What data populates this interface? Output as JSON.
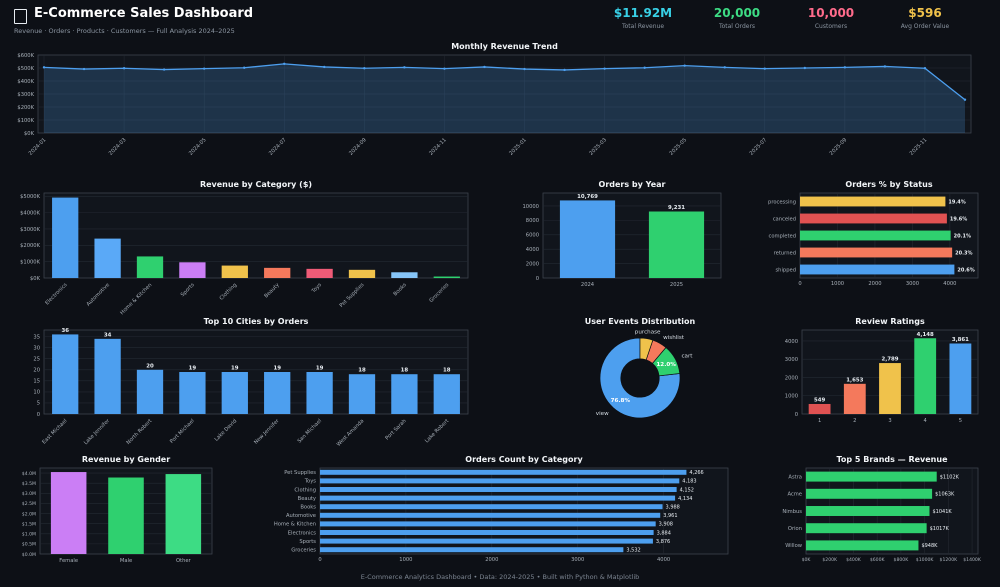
{
  "header": {
    "title": "E-Commerce Sales Dashboard",
    "subtitle": "Revenue · Orders · Products · Customers — Full Analysis 2024–2025",
    "kpis": [
      {
        "value": "$11.92M",
        "label": "Total Revenue",
        "color": "#38d0e6"
      },
      {
        "value": "20,000",
        "label": "Total Orders",
        "color": "#3ddc84"
      },
      {
        "value": "10,000",
        "label": "Customers",
        "color": "#ff6b8b"
      },
      {
        "value": "$596",
        "label": "Avg Order Value",
        "color": "#f0c24b"
      }
    ]
  },
  "footer": {
    "text": "E-Commerce Analytics Dashboard  •  Data: 2024-2025  •  Built with Python & Matplotlib"
  },
  "chart_data": [
    {
      "name": "monthly-revenue-trend",
      "type": "area",
      "title": "Monthly Revenue Trend",
      "x": [
        "2024-01",
        "2024-02",
        "2024-03",
        "2024-04",
        "2024-05",
        "2024-06",
        "2024-07",
        "2024-08",
        "2024-09",
        "2024-10",
        "2024-11",
        "2024-12",
        "2025-01",
        "2025-02",
        "2025-03",
        "2025-04",
        "2025-05",
        "2025-06",
        "2025-07",
        "2025-08",
        "2025-09",
        "2025-10",
        "2025-11",
        "2025-12"
      ],
      "values": [
        505,
        492,
        498,
        488,
        495,
        502,
        532,
        508,
        498,
        505,
        495,
        508,
        492,
        485,
        495,
        502,
        518,
        505,
        495,
        500,
        505,
        512,
        498,
        256
      ],
      "unit": "$K",
      "xtick_every": 2,
      "ylim": [
        0,
        600
      ],
      "yticks": {
        "vals": [
          0,
          100,
          200,
          300,
          400,
          500,
          600
        ],
        "labels": [
          "$0K",
          "$100K",
          "$200K",
          "$300K",
          "$400K",
          "$500K",
          "$600K"
        ]
      },
      "line_color": "#4d9fef",
      "fill_color": "rgba(77,159,239,0.22)"
    },
    {
      "name": "revenue-by-category",
      "type": "bar",
      "title": "Revenue by Category ($)",
      "categories": [
        "Electronics",
        "Automotive",
        "Home & Kitchen",
        "Sports",
        "Clothing",
        "Beauty",
        "Toys",
        "Pet Supplies",
        "Books",
        "Groceries"
      ],
      "values": [
        4920,
        2410,
        1320,
        960,
        760,
        620,
        560,
        500,
        350,
        90
      ],
      "unit": "$K",
      "ylim": [
        0,
        5200
      ],
      "yticks": {
        "vals": [
          0,
          1000,
          2000,
          3000,
          4000,
          5000
        ],
        "labels": [
          "$0K",
          "$1000K",
          "$2000K",
          "$3000K",
          "$4000K",
          "$5000K"
        ]
      },
      "colors": [
        "#4d9fef",
        "#5aa9f7",
        "#2fd06f",
        "#cb7ef5",
        "#f0c24b",
        "#f4795c",
        "#ef5b77",
        "#f0c24b",
        "#86c5f8",
        "#2fd06f"
      ],
      "rotate_xlabels": true
    },
    {
      "name": "orders-by-year",
      "type": "bar",
      "title": "Orders by Year",
      "categories": [
        "2024",
        "2025"
      ],
      "values": [
        10769,
        9231
      ],
      "value_labels": [
        "10,769",
        "9,231"
      ],
      "ylim": [
        0,
        11800
      ],
      "yticks": {
        "vals": [
          0,
          2000,
          4000,
          6000,
          8000,
          10000
        ],
        "labels": [
          "0",
          "2000",
          "4000",
          "6000",
          "8000",
          "10000"
        ]
      },
      "colors": [
        "#4d9fef",
        "#2fd06f"
      ],
      "rotate_xlabels": false
    },
    {
      "name": "orders-pct-by-status",
      "type": "barh",
      "title": "Orders % by Status",
      "categories": [
        "processing",
        "canceled",
        "completed",
        "returned",
        "shipped"
      ],
      "values": [
        3880,
        3920,
        4020,
        4060,
        4120
      ],
      "value_labels": [
        "19.4%",
        "19.6%",
        "20.1%",
        "20.3%",
        "20.6%"
      ],
      "bold_values": true,
      "xlim": [
        0,
        4750
      ],
      "xticks": {
        "vals": [
          0,
          1000,
          2000,
          3000,
          4000
        ],
        "labels": [
          "0",
          "1000",
          "2000",
          "3000",
          "4000"
        ]
      },
      "colors": [
        "#f0c24b",
        "#e05252",
        "#2fd06f",
        "#f4795c",
        "#4d9fef"
      ]
    },
    {
      "name": "top-10-cities-by-orders",
      "type": "bar",
      "title": "Top 10 Cities by Orders",
      "categories": [
        "East Michael",
        "Lake Jennifer",
        "North Robert",
        "Port Michael",
        "Lake David",
        "New Jennifer",
        "San Michael",
        "West Amanda",
        "Port Sarah",
        "Lake Robert"
      ],
      "values": [
        36,
        34,
        20,
        19,
        19,
        19,
        19,
        18,
        18,
        18
      ],
      "value_labels": [
        "36",
        "34",
        "20",
        "19",
        "19",
        "19",
        "19",
        "18",
        "18",
        "18"
      ],
      "ylim": [
        0,
        38
      ],
      "yticks": {
        "vals": [
          0,
          5,
          10,
          15,
          20,
          25,
          30,
          35
        ],
        "labels": [
          "0",
          "5",
          "10",
          "15",
          "20",
          "25",
          "30",
          "35"
        ]
      },
      "colors": "#4d9fef",
      "rotate_xlabels": true
    },
    {
      "name": "user-events-distribution",
      "type": "donut",
      "title": "User Events Distribution",
      "start_angle": 90,
      "direction": "ccw",
      "hole": 0.48,
      "slices": [
        {
          "label": "view",
          "pct": 76.8,
          "color": "#4d9fef"
        },
        {
          "label": "cart",
          "pct": 12.0,
          "color": "#2fd06f"
        },
        {
          "label": "wishlist",
          "pct": 6.0,
          "color": "#f4795c"
        },
        {
          "label": "purchase",
          "pct": 5.2,
          "color": "#f0c24b"
        }
      ]
    },
    {
      "name": "review-ratings",
      "type": "bar",
      "title": "Review Ratings",
      "categories": [
        "1",
        "2",
        "3",
        "4",
        "5"
      ],
      "values": [
        549,
        1653,
        2789,
        4148,
        3861
      ],
      "value_labels": [
        "549",
        "1,653",
        "2,789",
        "4,148",
        "3,861"
      ],
      "ylim": [
        0,
        4600
      ],
      "yticks": {
        "vals": [
          0,
          1000,
          2000,
          3000,
          4000
        ],
        "labels": [
          "0",
          "1000",
          "2000",
          "3000",
          "4000"
        ]
      },
      "colors": [
        "#e05252",
        "#f4795c",
        "#f0c24b",
        "#2fd06f",
        "#4d9fef"
      ],
      "rotate_xlabels": false
    },
    {
      "name": "revenue-by-gender",
      "type": "bar",
      "title": "Revenue by Gender",
      "categories": [
        "Female",
        "Male",
        "Other"
      ],
      "values": [
        4.05,
        3.78,
        3.95
      ],
      "unit": "$M",
      "ylim": [
        0,
        4.25
      ],
      "small_yticks": true,
      "yticks": {
        "vals": [
          0,
          0.5,
          1,
          1.5,
          2,
          2.5,
          3,
          3.5,
          4
        ],
        "labels": [
          "$0.0M",
          "$0.5M",
          "$1.0M",
          "$1.5M",
          "$2.0M",
          "$2.5M",
          "$3.0M",
          "$3.5M",
          "$4.0M"
        ]
      },
      "colors": [
        "#cb7ef5",
        "#2fd06f",
        "#3ddc84"
      ],
      "rotate_xlabels": false
    },
    {
      "name": "orders-count-by-category",
      "type": "barh",
      "title": "Orders Count by Category",
      "categories": [
        "Pet Supplies",
        "Toys",
        "Clothing",
        "Beauty",
        "Books",
        "Automotive",
        "Home & Kitchen",
        "Electronics",
        "Sports",
        "Groceries"
      ],
      "values": [
        4266,
        4183,
        4152,
        4134,
        3988,
        3961,
        3908,
        3884,
        3876,
        3532
      ],
      "value_labels": [
        "4,266",
        "4,183",
        "4,152",
        "4,134",
        "3,988",
        "3,961",
        "3,908",
        "3,884",
        "3,876",
        "3,532"
      ],
      "xlim": [
        0,
        4750
      ],
      "xticks": {
        "vals": [
          0,
          1000,
          2000,
          3000,
          4000
        ],
        "labels": [
          "0",
          "1000",
          "2000",
          "3000",
          "4000"
        ]
      },
      "colors": "#4d9fef"
    },
    {
      "name": "top-5-brands-revenue",
      "type": "barh",
      "title": "Top 5 Brands — Revenue",
      "categories": [
        "Astra",
        "Acme",
        "Nimbus",
        "Orion",
        "Willow"
      ],
      "values": [
        1102,
        1063,
        1041,
        1017,
        948
      ],
      "value_labels": [
        "$1102K",
        "$1063K",
        "$1041K",
        "$1017K",
        "$948K"
      ],
      "xlim": [
        0,
        1450
      ],
      "small_xticks": true,
      "xticks": {
        "vals": [
          0,
          200,
          400,
          600,
          800,
          1000,
          1200,
          1400
        ],
        "labels": [
          "$0K",
          "$200K",
          "$400K",
          "$600K",
          "$800K",
          "$1000K",
          "$1200K",
          "$1400K"
        ]
      },
      "colors": "#2fd06f"
    }
  ]
}
